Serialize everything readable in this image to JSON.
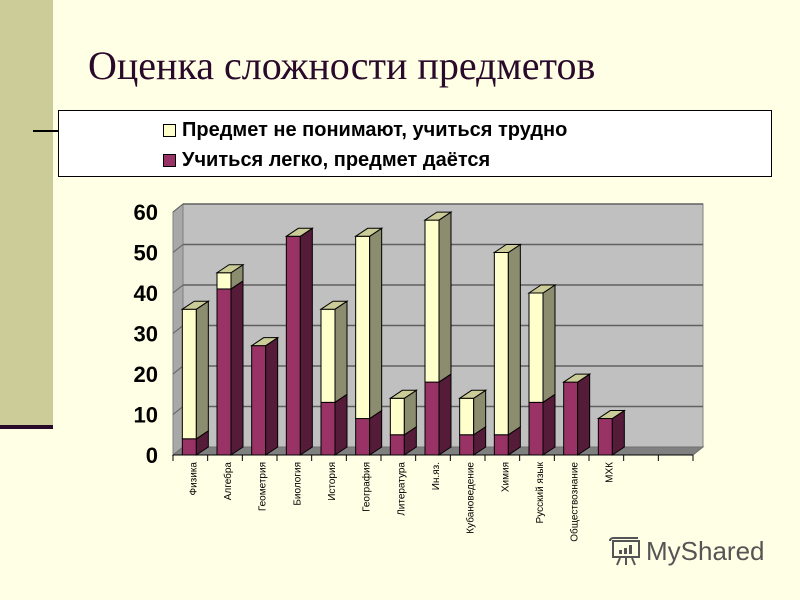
{
  "slide": {
    "title": "Оценка сложности предметов",
    "watermark": "MyShared"
  },
  "legend": {
    "items": [
      {
        "label": "Предмет не понимают, учиться трудно",
        "color": "#FFFFCC"
      },
      {
        "label": "Учиться легко, предмет даётся",
        "color": "#993366"
      }
    ]
  },
  "chart_data": {
    "type": "bar",
    "stacked": true,
    "three_d": true,
    "title": "Оценка сложности предметов",
    "xlabel": "",
    "ylabel": "",
    "ylim": [
      0,
      60
    ],
    "yticks": [
      0,
      10,
      20,
      30,
      40,
      50,
      60
    ],
    "grid": true,
    "legend_position": "top",
    "categories": [
      "Физика",
      "Алгебра",
      "Геометрия",
      "Биология",
      "История",
      "География",
      "Литература",
      "Ин.яз.",
      "Кубановедение",
      "Химия",
      "Русский язык",
      "Обществознание",
      "МХК"
    ],
    "series": [
      {
        "name": "Учиться легко, предмет даётся",
        "color": "#993366",
        "values": [
          4,
          41,
          27,
          54,
          13,
          9,
          5,
          18,
          5,
          5,
          13,
          18,
          9
        ]
      },
      {
        "name": "Предмет не понимают, учиться трудно",
        "color": "#FFFFCC",
        "values": [
          32,
          4,
          0,
          0,
          23,
          45,
          9,
          40,
          9,
          45,
          27,
          0,
          0
        ]
      }
    ],
    "totals": [
      36,
      45,
      27,
      54,
      36,
      54,
      14,
      58,
      14,
      50,
      40,
      18,
      9
    ]
  }
}
